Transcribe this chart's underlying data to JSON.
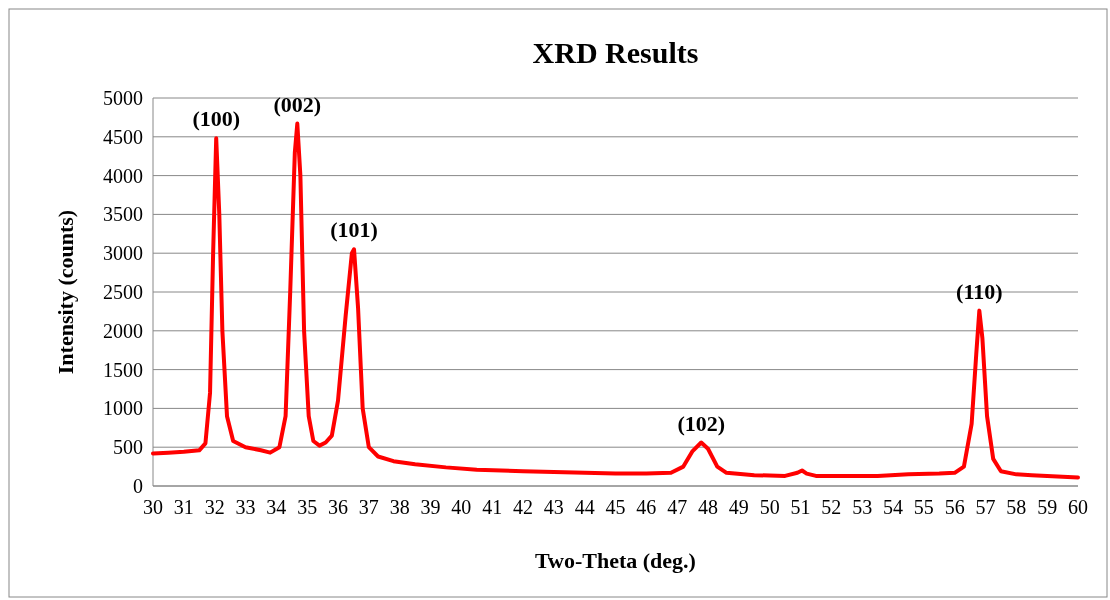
{
  "chart_data": {
    "type": "line",
    "title": "XRD Results",
    "xlabel": "Two-Theta (deg.)",
    "ylabel": "Intensity (counts)",
    "xlim": [
      30,
      60
    ],
    "xticks": [
      30,
      31,
      32,
      33,
      34,
      35,
      36,
      37,
      38,
      39,
      40,
      41,
      42,
      43,
      44,
      45,
      46,
      47,
      48,
      49,
      50,
      51,
      52,
      53,
      54,
      55,
      56,
      57,
      58,
      59,
      60
    ],
    "ylim": [
      0,
      5000
    ],
    "yticks": [
      0,
      500,
      1000,
      1500,
      2000,
      2500,
      3000,
      3500,
      4000,
      4500,
      5000
    ],
    "grid": "y",
    "marker": "none",
    "line_style": "solid",
    "series": [
      {
        "color": "#ff0000",
        "x": [
          30,
          30.5,
          31,
          31.5,
          31.7,
          31.85,
          31.95,
          32.05,
          32.15,
          32.25,
          32.4,
          32.6,
          33,
          33.5,
          33.8,
          34.1,
          34.3,
          34.45,
          34.6,
          34.68,
          34.78,
          34.9,
          35.05,
          35.2,
          35.4,
          35.6,
          35.8,
          36,
          36.25,
          36.45,
          36.52,
          36.65,
          36.8,
          37,
          37.3,
          37.8,
          38.5,
          39.5,
          40.5,
          42,
          43,
          44,
          45,
          46,
          46.8,
          47.2,
          47.5,
          47.78,
          48,
          48.3,
          48.6,
          49.5,
          50.5,
          50.9,
          51.05,
          51.2,
          51.5,
          52.5,
          53.5,
          54.5,
          55.5,
          56,
          56.3,
          56.55,
          56.7,
          56.8,
          56.9,
          57.05,
          57.25,
          57.5,
          58,
          58.5,
          59,
          59.5,
          60
        ],
        "values": [
          420,
          430,
          440,
          460,
          550,
          1200,
          3000,
          4480,
          3500,
          2000,
          900,
          580,
          500,
          460,
          430,
          500,
          900,
          2500,
          4300,
          4670,
          4000,
          2000,
          900,
          580,
          520,
          560,
          650,
          1100,
          2200,
          3000,
          3050,
          2300,
          1000,
          500,
          380,
          320,
          280,
          240,
          210,
          190,
          180,
          170,
          160,
          160,
          170,
          250,
          450,
          560,
          480,
          250,
          170,
          140,
          130,
          170,
          200,
          160,
          130,
          130,
          130,
          150,
          160,
          170,
          250,
          800,
          1700,
          2260,
          1900,
          900,
          350,
          190,
          150,
          140,
          130,
          120,
          110
        ]
      }
    ],
    "annotations": [
      {
        "text": "(100)",
        "x": 32.05,
        "y": 4480
      },
      {
        "text": "(002)",
        "x": 34.68,
        "y": 4670
      },
      {
        "text": "(101)",
        "x": 36.52,
        "y": 3050
      },
      {
        "text": "(102)",
        "x": 47.78,
        "y": 560
      },
      {
        "text": "(110)",
        "x": 56.8,
        "y": 2260
      }
    ]
  }
}
